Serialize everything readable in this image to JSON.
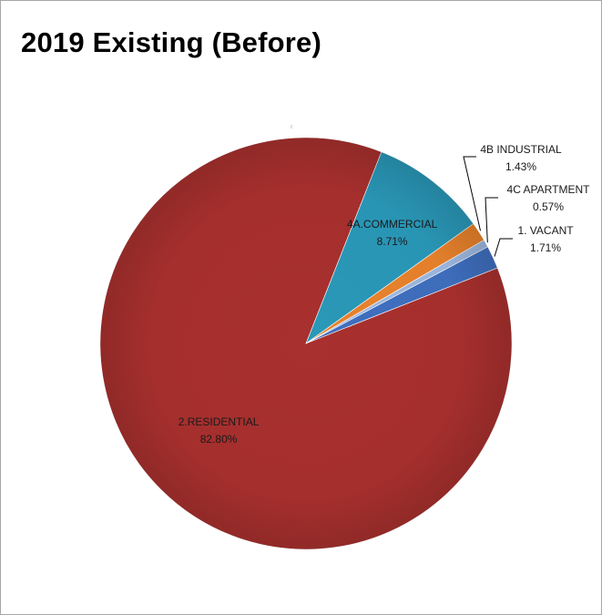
{
  "chart_data": {
    "type": "pie",
    "title": "2019 Existing (Before)",
    "slices": [
      {
        "name": "1. VACANT",
        "value": 1.71,
        "label": "1.71%",
        "color": "#3f6fbf"
      },
      {
        "name": "2.RESIDENTIAL",
        "value": 82.8,
        "label": "82.80%",
        "color": "#a8302e"
      },
      {
        "name": "4A.COMMERCIAL",
        "value": 8.71,
        "label": "8.71%",
        "color": "#2a98b8"
      },
      {
        "name": "4B INDUSTRIAL",
        "value": 1.43,
        "label": "1.43%",
        "color": "#e8822c"
      },
      {
        "name": "4C APARTMENT",
        "value": 0.57,
        "label": "0.57%",
        "color": "#9db8e0"
      }
    ],
    "legend": "none",
    "data_labels": "category name and percentage"
  }
}
